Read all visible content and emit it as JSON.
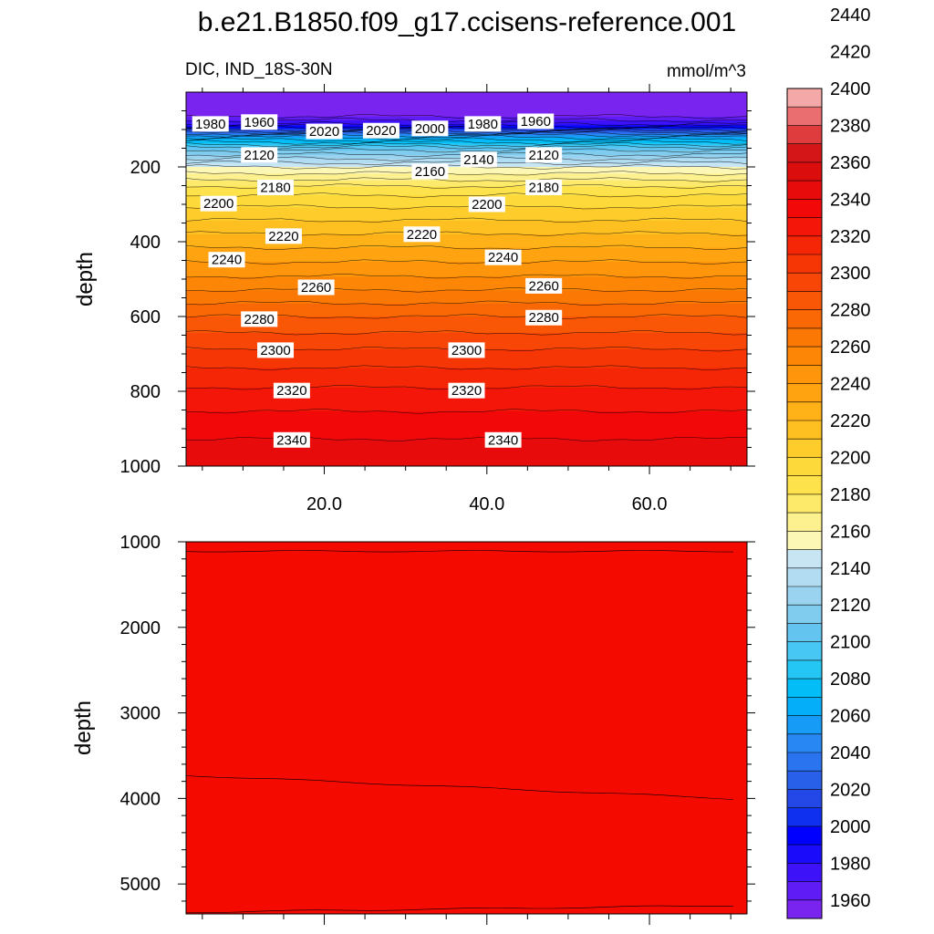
{
  "chart_data": {
    "type": "heatmap",
    "title": "b.e21.B1850.f09_g17.ccisens-reference.001",
    "subtitle_left": "DIC, IND_18S-30N",
    "subtitle_right": "mmol/m^3",
    "ylabel": "depth",
    "x_ticks": [
      "20.0",
      "40.0",
      "60.0"
    ],
    "x_tick_values": [
      20,
      40,
      60
    ],
    "xlim": [
      3,
      72
    ],
    "top_panel": {
      "ylim": [
        0,
        1000
      ],
      "y_ticks": [
        "200",
        "400",
        "600",
        "800",
        "1000"
      ],
      "y_tick_values": [
        200,
        400,
        600,
        800,
        1000
      ],
      "profile": [
        {
          "depth": 0,
          "value": 1950
        },
        {
          "depth": 60,
          "value": 1955
        },
        {
          "depth": 90,
          "value": 1985
        },
        {
          "depth": 115,
          "value": 2050
        },
        {
          "depth": 150,
          "value": 2105
        },
        {
          "depth": 200,
          "value": 2150
        },
        {
          "depth": 260,
          "value": 2185
        },
        {
          "depth": 310,
          "value": 2201
        },
        {
          "depth": 400,
          "value": 2226
        },
        {
          "depth": 500,
          "value": 2252
        },
        {
          "depth": 600,
          "value": 2280
        },
        {
          "depth": 700,
          "value": 2303
        },
        {
          "depth": 800,
          "value": 2322
        },
        {
          "depth": 900,
          "value": 2337
        },
        {
          "depth": 1000,
          "value": 2348
        }
      ],
      "contour_labels": [
        {
          "text": "1980",
          "x": 6,
          "depth": 85
        },
        {
          "text": "1960",
          "x": 12,
          "depth": 80
        },
        {
          "text": "2020",
          "x": 20,
          "depth": 105
        },
        {
          "text": "2020",
          "x": 27,
          "depth": 103
        },
        {
          "text": "2000",
          "x": 33,
          "depth": 97
        },
        {
          "text": "1980",
          "x": 39.5,
          "depth": 85
        },
        {
          "text": "1960",
          "x": 46,
          "depth": 78
        },
        {
          "text": "2120",
          "x": 12,
          "depth": 168
        },
        {
          "text": "2140",
          "x": 39,
          "depth": 180
        },
        {
          "text": "2120",
          "x": 47,
          "depth": 168
        },
        {
          "text": "2160",
          "x": 33,
          "depth": 212
        },
        {
          "text": "2180",
          "x": 14,
          "depth": 255
        },
        {
          "text": "2180",
          "x": 47,
          "depth": 255
        },
        {
          "text": "2200",
          "x": 7,
          "depth": 298
        },
        {
          "text": "2200",
          "x": 40,
          "depth": 300
        },
        {
          "text": "2220",
          "x": 15,
          "depth": 385
        },
        {
          "text": "2220",
          "x": 32,
          "depth": 380
        },
        {
          "text": "2240",
          "x": 8,
          "depth": 448
        },
        {
          "text": "2240",
          "x": 42,
          "depth": 442
        },
        {
          "text": "2260",
          "x": 19,
          "depth": 522
        },
        {
          "text": "2260",
          "x": 47,
          "depth": 518
        },
        {
          "text": "2280",
          "x": 12,
          "depth": 607
        },
        {
          "text": "2280",
          "x": 47,
          "depth": 603
        },
        {
          "text": "2300",
          "x": 14,
          "depth": 690
        },
        {
          "text": "2300",
          "x": 37.5,
          "depth": 690
        },
        {
          "text": "2320",
          "x": 16,
          "depth": 798
        },
        {
          "text": "2320",
          "x": 37.5,
          "depth": 798
        },
        {
          "text": "2340",
          "x": 16,
          "depth": 930
        },
        {
          "text": "2340",
          "x": 42,
          "depth": 930
        }
      ]
    },
    "bottom_panel": {
      "ylim": [
        1000,
        5350
      ],
      "y_ticks": [
        "1000",
        "2000",
        "3000",
        "4000",
        "5000"
      ],
      "y_tick_values": [
        1000,
        2000,
        3000,
        4000,
        5000
      ],
      "contour_lines": [
        {
          "x": [
            3,
            72
          ],
          "depth": [
            1110,
            1110
          ]
        },
        {
          "x": [
            3,
            72
          ],
          "depth": [
            3730,
            4010
          ]
        },
        {
          "x": [
            3,
            72
          ],
          "depth": [
            5330,
            5250
          ]
        }
      ],
      "fill_color": "#f50a00"
    },
    "colorbar": {
      "ticks": [
        "1960",
        "1980",
        "2000",
        "2020",
        "2040",
        "2060",
        "2080",
        "2100",
        "2120",
        "2140",
        "2160",
        "2180",
        "2200",
        "2220",
        "2240",
        "2260",
        "2280",
        "2300",
        "2320",
        "2340",
        "2360",
        "2380",
        "2400",
        "2420",
        "2440"
      ],
      "levels_min": 1950,
      "levels_step": 10,
      "colors": [
        "#7a24f0",
        "#5f1cf5",
        "#3e12f8",
        "#1a0cfa",
        "#0000ff",
        "#1030f0",
        "#2448e8",
        "#2860ea",
        "#2a74ef",
        "#2887f2",
        "#169bf6",
        "#05aef8",
        "#03bdf6",
        "#24c6f4",
        "#47c7f3",
        "#62c4ef",
        "#80ccee",
        "#9ad3ef",
        "#b1dcf2",
        "#c8e5f4",
        "#fdf7b6",
        "#fdf18f",
        "#fdea6a",
        "#fde24c",
        "#fed93a",
        "#fecd2c",
        "#febf21",
        "#ffb118",
        "#ffa311",
        "#ff950b",
        "#fe8607",
        "#fb7805",
        "#fa6805",
        "#f95705",
        "#f74605",
        "#f63605",
        "#f52606",
        "#f41608",
        "#f30809",
        "#e70b0b",
        "#db0d0d",
        "#d41618",
        "#df3c3d",
        "#ea6e70",
        "#f4a8a8"
      ]
    }
  }
}
